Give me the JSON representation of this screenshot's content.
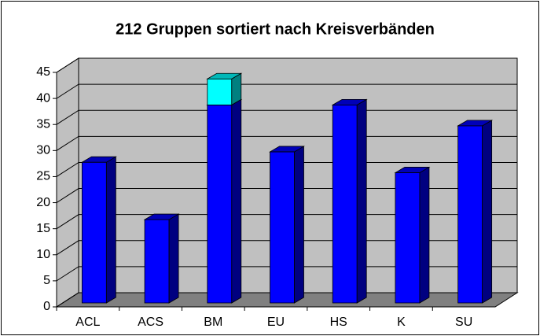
{
  "chart_data": {
    "type": "bar3d_stacked",
    "title": "212 Gruppen sortiert nach Kreisverbänden",
    "categories": [
      "ACL",
      "ACS",
      "BM",
      "EU",
      "HS",
      "K",
      "SU"
    ],
    "series": [
      {
        "color": "#0000ff",
        "values": [
          27,
          16,
          38,
          29,
          38,
          25,
          34
        ]
      },
      {
        "color": "#00ffff",
        "values": [
          0,
          0,
          5,
          0,
          0,
          0,
          0
        ]
      }
    ],
    "ylim": [
      0,
      45
    ],
    "yticks": [
      0,
      5,
      10,
      15,
      20,
      25,
      30,
      35,
      40,
      45
    ],
    "grid": true
  }
}
